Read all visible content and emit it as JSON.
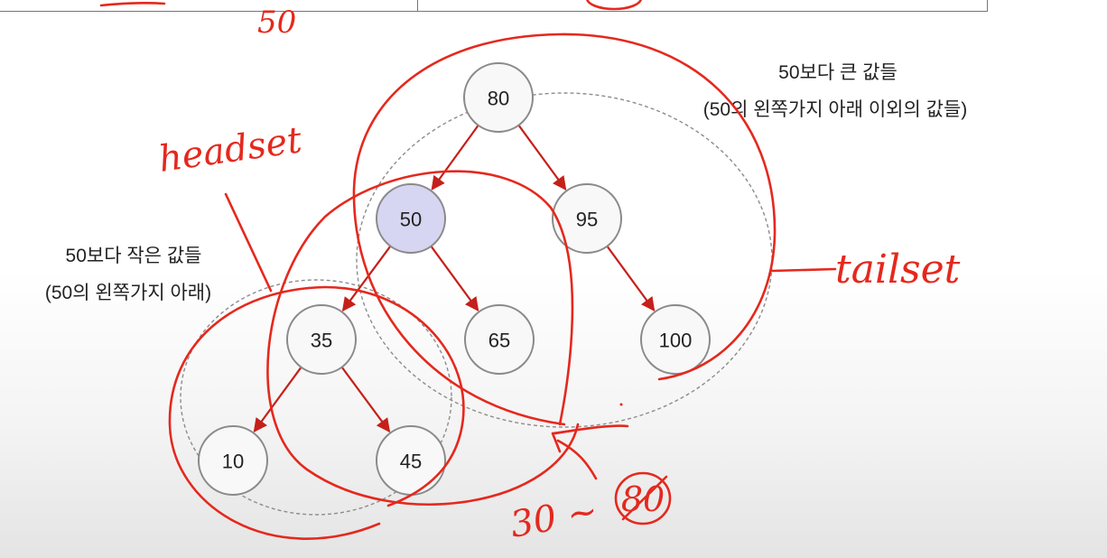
{
  "top_table": {
    "left_cell_fragment": "· · · · ·",
    "right_cell_fragment": "· · · · ·"
  },
  "tree": {
    "nodes": [
      {
        "id": "80",
        "label": "80",
        "highlighted": false
      },
      {
        "id": "50",
        "label": "50",
        "highlighted": true
      },
      {
        "id": "95",
        "label": "95",
        "highlighted": false
      },
      {
        "id": "35",
        "label": "35",
        "highlighted": false
      },
      {
        "id": "65",
        "label": "65",
        "highlighted": false
      },
      {
        "id": "100",
        "label": "100",
        "highlighted": false
      },
      {
        "id": "10",
        "label": "10",
        "highlighted": false
      },
      {
        "id": "45",
        "label": "45",
        "highlighted": false
      }
    ],
    "edges": [
      {
        "from": "80",
        "to": "50"
      },
      {
        "from": "80",
        "to": "95"
      },
      {
        "from": "50",
        "to": "35"
      },
      {
        "from": "50",
        "to": "65"
      },
      {
        "from": "95",
        "to": "100"
      },
      {
        "from": "35",
        "to": "10"
      },
      {
        "from": "35",
        "to": "45"
      }
    ]
  },
  "annotations": {
    "greater": {
      "line1": "50보다 큰 값들",
      "line2": "(50의 왼쪽가지 아래 이외의 값들)"
    },
    "less": {
      "line1": "50보다 작은 값들",
      "line2": "(50의 왼쪽가지 아래)"
    }
  },
  "handwriting": {
    "headset": "headset",
    "tailset": "tailset",
    "range_prefix": "30 ~",
    "crossed_value": "80",
    "top_fragment": "50"
  },
  "colors": {
    "ink": "#e5281d",
    "edge": "#c6201a",
    "highlight_node": "#d6d6f2"
  }
}
